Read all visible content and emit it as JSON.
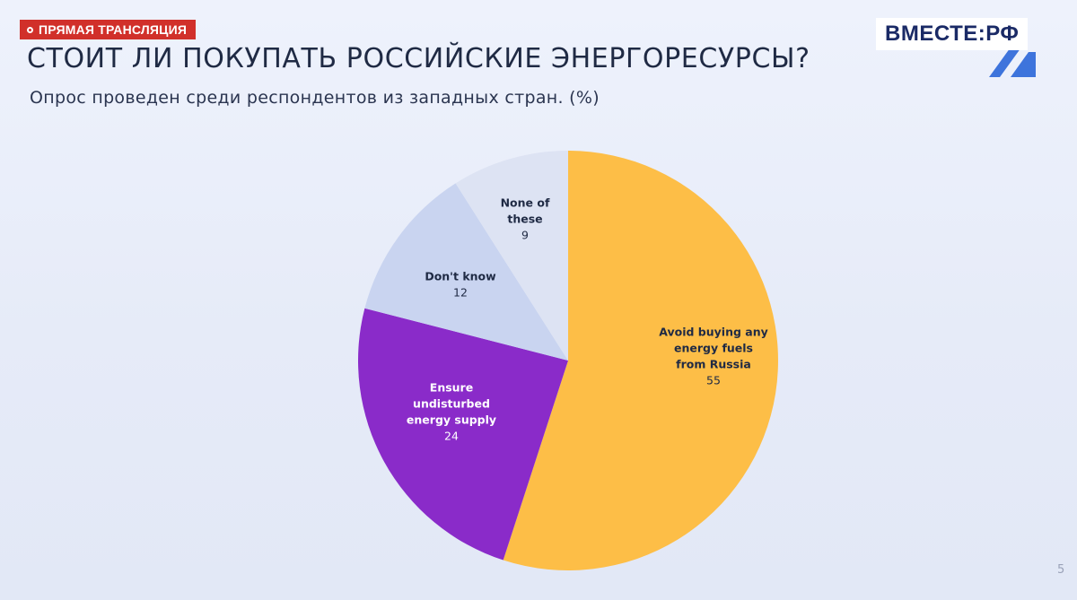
{
  "live_badge": {
    "label": "ПРЯМАЯ ТРАНСЛЯЦИЯ",
    "color": "#d1302a"
  },
  "channel_logo": {
    "text": "ВМЕСТЕ:РФ"
  },
  "slide": {
    "title": "СТОИТ ЛИ ПОКУПАТЬ РОССИЙСКИЕ ЭНЕРГОРЕСУРСЫ?",
    "subtitle": "Опрос проведен среди респондентов из западных стран. (%)",
    "page_number": "5"
  },
  "chart_data": {
    "type": "pie",
    "title": "СТОИТ ЛИ ПОКУПАТЬ РОССИЙСКИЕ ЭНЕРГОРЕСУРСЫ?",
    "subtitle": "Опрос проведен среди респондентов из западных стран. (%)",
    "start": "12 o'clock",
    "direction": "clockwise",
    "slices": [
      {
        "label_lines": [
          "Avoid buying any",
          "energy fuels",
          "from Russia"
        ],
        "value": 55,
        "color": "#fdbe47",
        "label_color": "#1f2a44"
      },
      {
        "label_lines": [
          "Ensure",
          "undisturbed",
          "energy supply"
        ],
        "value": 24,
        "color": "#8a2bc9",
        "label_color": "#ffffff"
      },
      {
        "label_lines": [
          "Don't know"
        ],
        "value": 12,
        "color": "#c9d4f0",
        "label_color": "#1f2a44"
      },
      {
        "label_lines": [
          "None of",
          "these"
        ],
        "value": 9,
        "color": "#dde3f3",
        "label_color": "#1f2a44"
      }
    ]
  }
}
